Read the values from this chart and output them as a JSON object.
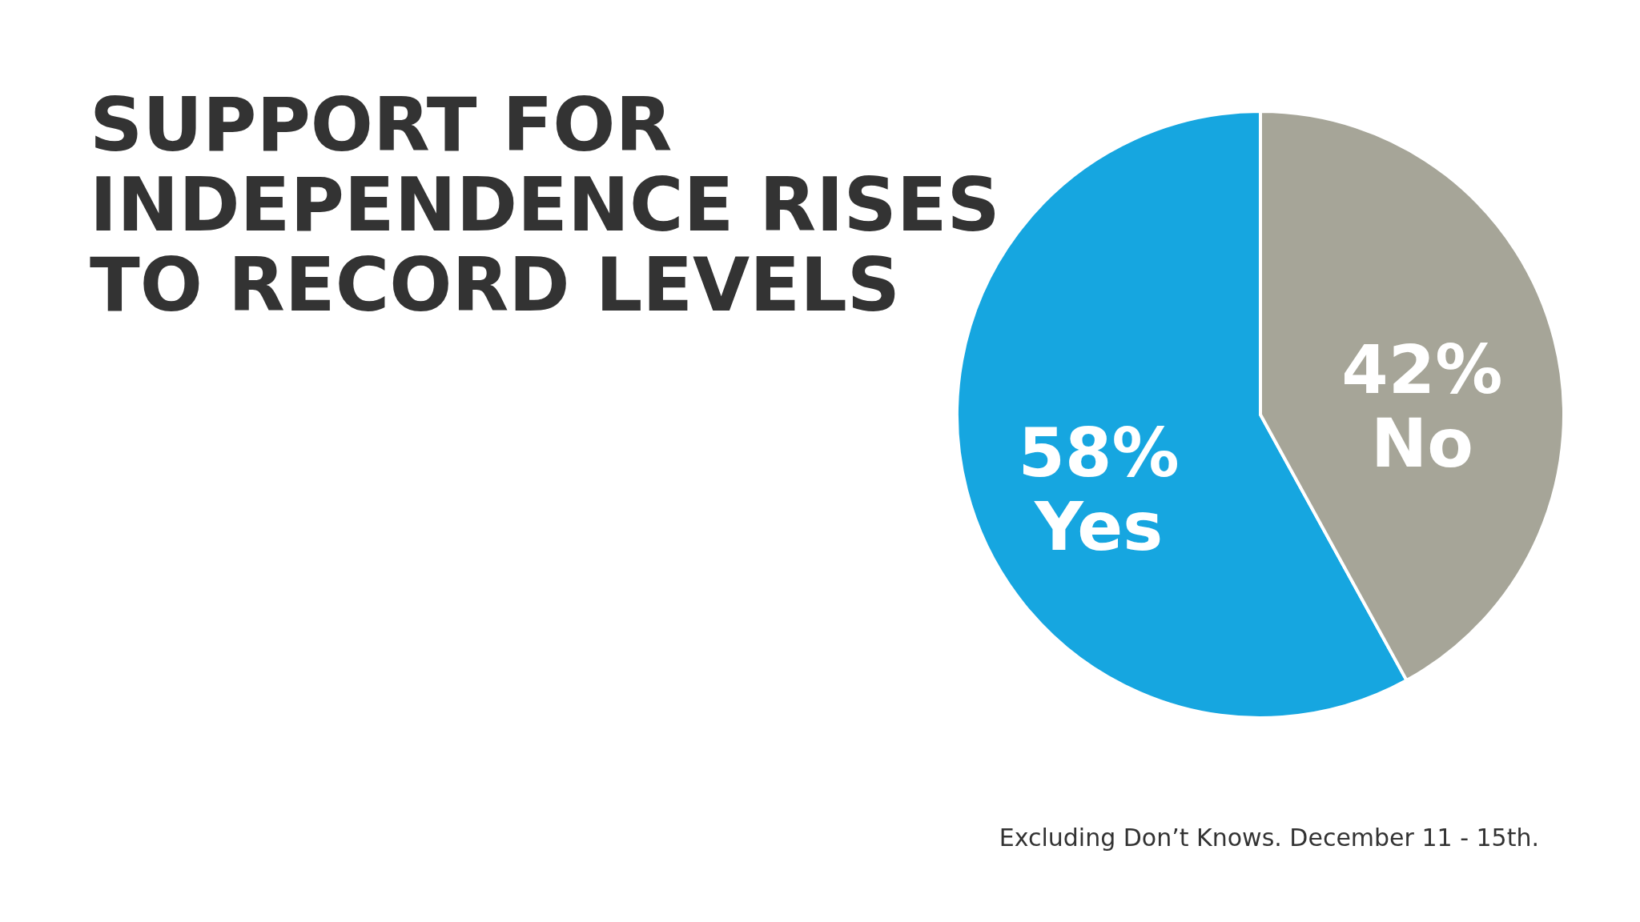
{
  "chart_data": {
    "type": "pie",
    "title": "SUPPORT FOR\nINDEPENDENCE RISES\nTO RECORD LEVELS",
    "categories": [
      "Yes",
      "No"
    ],
    "values": [
      58,
      42
    ],
    "colors": [
      "#16a6e0",
      "#a6a598"
    ],
    "value_labels": [
      "58%",
      "42%"
    ],
    "annotations": [
      "Excluding Don’t Knows. December 11 - 15th."
    ]
  }
}
